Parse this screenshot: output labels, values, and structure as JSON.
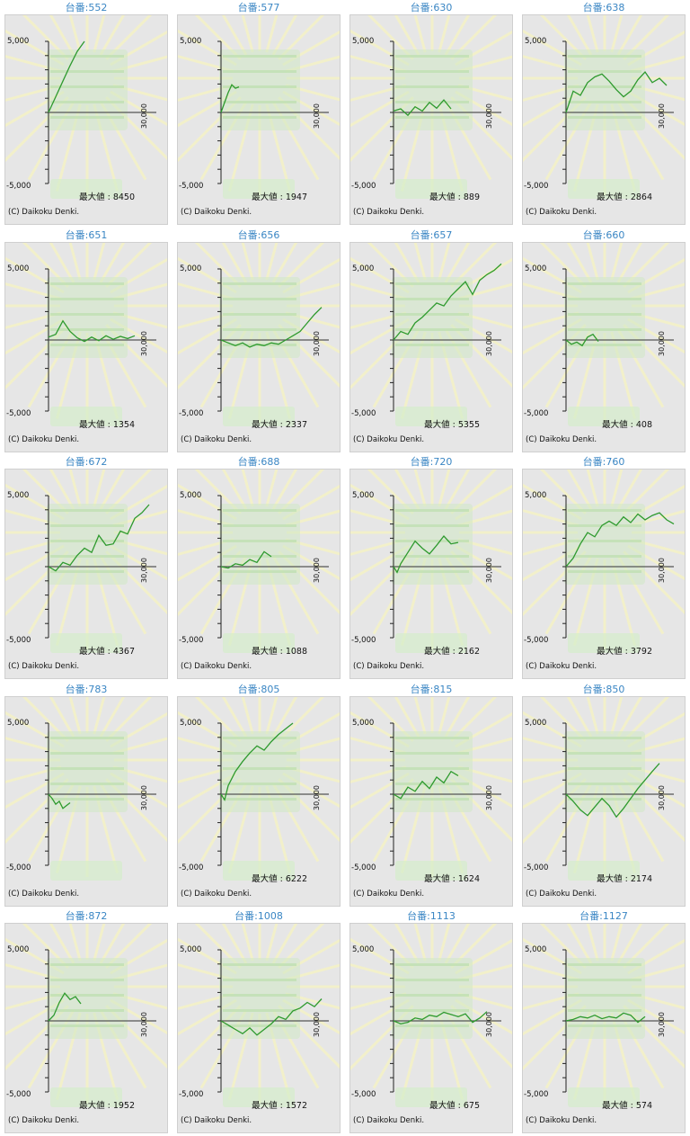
{
  "copyright": "(C) Daikoku Denki.",
  "max_label": "最大値 : ",
  "title_prefix": "台番:",
  "colors": {
    "line": "#2e9a2e",
    "title": "#3a86c4",
    "panel": "#e6e6e6"
  },
  "chart_data": [
    {
      "type": "line",
      "title": "台番:552",
      "machine": "552",
      "max_value": "8450",
      "y_ticks": [
        "5,000",
        "-5,000"
      ],
      "x_tick": "30,000",
      "ylim": [
        -5000,
        5000
      ],
      "xlim": [
        0,
        30000
      ],
      "x": [
        0,
        2000,
        4000,
        6000,
        8000,
        10000
      ],
      "y": [
        0,
        1100,
        2200,
        3300,
        4300,
        5000
      ]
    },
    {
      "type": "line",
      "title": "台番:577",
      "machine": "577",
      "max_value": "1947",
      "y_ticks": [
        "5,000",
        "-5,000"
      ],
      "x_tick": "30,000",
      "ylim": [
        -5000,
        5000
      ],
      "xlim": [
        0,
        30000
      ],
      "x": [
        0,
        1000,
        2000,
        3000,
        4000,
        5000
      ],
      "y": [
        0,
        700,
        1400,
        1950,
        1700,
        1800
      ]
    },
    {
      "type": "line",
      "title": "台番:630",
      "machine": "630",
      "max_value": "889",
      "y_ticks": [
        "5,000",
        "-5,000"
      ],
      "x_tick": "30,000",
      "ylim": [
        -5000,
        5000
      ],
      "xlim": [
        0,
        30000
      ],
      "x": [
        0,
        2000,
        4000,
        6000,
        8000,
        10000,
        12000,
        14000,
        16000
      ],
      "y": [
        100,
        250,
        -200,
        400,
        100,
        700,
        300,
        880,
        250
      ]
    },
    {
      "type": "line",
      "title": "台番:638",
      "machine": "638",
      "max_value": "2864",
      "y_ticks": [
        "5,000",
        "-5,000"
      ],
      "x_tick": "30,000",
      "ylim": [
        -5000,
        5000
      ],
      "xlim": [
        0,
        30000
      ],
      "x": [
        0,
        2000,
        4000,
        6000,
        8000,
        10000,
        12000,
        14000,
        16000,
        18000,
        20000,
        22000,
        24000,
        26000,
        28000
      ],
      "y": [
        0,
        1500,
        1200,
        2100,
        2500,
        2700,
        2200,
        1600,
        1100,
        1500,
        2300,
        2850,
        2100,
        2400,
        1900
      ]
    },
    {
      "type": "line",
      "title": "台番:651",
      "machine": "651",
      "max_value": "1354",
      "y_ticks": [
        "5,000",
        "-5,000"
      ],
      "x_tick": "30,000",
      "ylim": [
        -5000,
        5000
      ],
      "xlim": [
        0,
        30000
      ],
      "x": [
        0,
        2000,
        4000,
        6000,
        8000,
        10000,
        12000,
        14000,
        16000,
        18000,
        20000,
        22000,
        24000
      ],
      "y": [
        200,
        400,
        1350,
        600,
        150,
        -100,
        200,
        -50,
        300,
        50,
        250,
        100,
        300
      ]
    },
    {
      "type": "line",
      "title": "台番:656",
      "machine": "656",
      "max_value": "2337",
      "y_ticks": [
        "5,000",
        "-5,000"
      ],
      "x_tick": "30,000",
      "ylim": [
        -5000,
        5000
      ],
      "xlim": [
        0,
        30000
      ],
      "x": [
        0,
        2000,
        4000,
        6000,
        8000,
        10000,
        12000,
        14000,
        16000,
        18000,
        20000,
        22000,
        24000,
        26000,
        28000
      ],
      "y": [
        0,
        -200,
        -400,
        -200,
        -500,
        -300,
        -400,
        -200,
        -300,
        0,
        300,
        600,
        1200,
        1800,
        2300
      ]
    },
    {
      "type": "line",
      "title": "台番:657",
      "machine": "657",
      "max_value": "5355",
      "y_ticks": [
        "5,000",
        "-5,000"
      ],
      "x_tick": "30,000",
      "ylim": [
        -5000,
        5000
      ],
      "xlim": [
        0,
        30000
      ],
      "x": [
        0,
        2000,
        4000,
        6000,
        8000,
        10000,
        12000,
        14000,
        16000,
        18000,
        20000,
        22000,
        24000,
        26000,
        28000,
        30000
      ],
      "y": [
        0,
        600,
        400,
        1200,
        1600,
        2100,
        2600,
        2400,
        3100,
        3600,
        4100,
        3200,
        4200,
        4600,
        4900,
        5355
      ]
    },
    {
      "type": "line",
      "title": "台番:660",
      "machine": "660",
      "max_value": "408",
      "y_ticks": [
        "5,000",
        "-5,000"
      ],
      "x_tick": "30,000",
      "ylim": [
        -5000,
        5000
      ],
      "xlim": [
        0,
        30000
      ],
      "x": [
        0,
        1500,
        3000,
        4500,
        6000,
        7500,
        9000
      ],
      "y": [
        0,
        -300,
        -150,
        -400,
        200,
        400,
        -100
      ]
    },
    {
      "type": "line",
      "title": "台番:672",
      "machine": "672",
      "max_value": "4367",
      "y_ticks": [
        "5,000",
        "-5,000"
      ],
      "x_tick": "30,000",
      "ylim": [
        -5000,
        5000
      ],
      "xlim": [
        0,
        30000
      ],
      "x": [
        0,
        2000,
        4000,
        6000,
        8000,
        10000,
        12000,
        14000,
        16000,
        18000,
        20000,
        22000,
        24000,
        26000,
        28000
      ],
      "y": [
        0,
        -300,
        300,
        100,
        800,
        1300,
        1000,
        2200,
        1500,
        1600,
        2500,
        2300,
        3400,
        3800,
        4367
      ]
    },
    {
      "type": "line",
      "title": "台番:688",
      "machine": "688",
      "max_value": "1088",
      "y_ticks": [
        "5,000",
        "-5,000"
      ],
      "x_tick": "30,000",
      "ylim": [
        -5000,
        5000
      ],
      "xlim": [
        0,
        30000
      ],
      "x": [
        0,
        2000,
        4000,
        6000,
        8000,
        10000,
        12000,
        14000
      ],
      "y": [
        0,
        -100,
        200,
        100,
        500,
        300,
        1050,
        700
      ]
    },
    {
      "type": "line",
      "title": "台番:720",
      "machine": "720",
      "max_value": "2162",
      "y_ticks": [
        "5,000",
        "-5,000"
      ],
      "x_tick": "30,000",
      "ylim": [
        -5000,
        5000
      ],
      "xlim": [
        0,
        30000
      ],
      "x": [
        0,
        1000,
        2000,
        4000,
        6000,
        8000,
        10000,
        12000,
        14000,
        16000,
        18000
      ],
      "y": [
        0,
        -400,
        200,
        1000,
        1800,
        1300,
        900,
        1500,
        2150,
        1600,
        1700
      ]
    },
    {
      "type": "line",
      "title": "台番:760",
      "machine": "760",
      "max_value": "3792",
      "y_ticks": [
        "5,000",
        "-5,000"
      ],
      "x_tick": "30,000",
      "ylim": [
        -5000,
        5000
      ],
      "xlim": [
        0,
        30000
      ],
      "x": [
        0,
        2000,
        4000,
        6000,
        8000,
        10000,
        12000,
        14000,
        16000,
        18000,
        20000,
        22000,
        24000,
        26000,
        28000,
        30000
      ],
      "y": [
        0,
        600,
        1600,
        2400,
        2100,
        2900,
        3200,
        2900,
        3500,
        3100,
        3700,
        3300,
        3600,
        3790,
        3300,
        3000
      ]
    },
    {
      "type": "line",
      "title": "台番:783",
      "machine": "783",
      "max_value": "",
      "y_ticks": [
        "5,000",
        "-5,000"
      ],
      "x_tick": "30,000",
      "ylim": [
        -5000,
        5000
      ],
      "xlim": [
        0,
        30000
      ],
      "x": [
        0,
        1000,
        2000,
        3000,
        4000,
        5000,
        6000
      ],
      "y": [
        0,
        -300,
        -700,
        -500,
        -1000,
        -800,
        -600
      ]
    },
    {
      "type": "line",
      "title": "台番:805",
      "machine": "805",
      "max_value": "6222",
      "y_ticks": [
        "5,000",
        "-5,000"
      ],
      "x_tick": "30,000",
      "ylim": [
        -5000,
        5000
      ],
      "xlim": [
        0,
        30000
      ],
      "x": [
        0,
        1000,
        2000,
        4000,
        6000,
        8000,
        10000,
        12000,
        14000,
        16000,
        18000,
        20000
      ],
      "y": [
        0,
        -400,
        600,
        1600,
        2300,
        2900,
        3400,
        3100,
        3700,
        4200,
        4600,
        5000
      ]
    },
    {
      "type": "line",
      "title": "台番:815",
      "machine": "815",
      "max_value": "1624",
      "y_ticks": [
        "5,000",
        "-5,000"
      ],
      "x_tick": "30,000",
      "ylim": [
        -5000,
        5000
      ],
      "xlim": [
        0,
        30000
      ],
      "x": [
        0,
        2000,
        4000,
        6000,
        8000,
        10000,
        12000,
        14000,
        16000,
        18000
      ],
      "y": [
        0,
        -300,
        500,
        200,
        900,
        400,
        1200,
        800,
        1600,
        1300
      ]
    },
    {
      "type": "line",
      "title": "台番:850",
      "machine": "850",
      "max_value": "2174",
      "y_ticks": [
        "5,000",
        "-5,000"
      ],
      "x_tick": "30,000",
      "ylim": [
        -5000,
        5000
      ],
      "xlim": [
        0,
        30000
      ],
      "x": [
        0,
        2000,
        4000,
        6000,
        8000,
        10000,
        12000,
        14000,
        16000,
        18000,
        20000,
        22000,
        24000,
        26000
      ],
      "y": [
        0,
        -500,
        -1100,
        -1500,
        -900,
        -300,
        -800,
        -1600,
        -1000,
        -300,
        400,
        1000,
        1600,
        2170
      ]
    },
    {
      "type": "line",
      "title": "台番:872",
      "machine": "872",
      "max_value": "1952",
      "y_ticks": [
        "5,000",
        "-5,000"
      ],
      "x_tick": "30,000",
      "ylim": [
        -5000,
        5000
      ],
      "xlim": [
        0,
        30000
      ],
      "x": [
        0,
        1500,
        3000,
        4500,
        6000,
        7500,
        9000
      ],
      "y": [
        0,
        400,
        1300,
        1950,
        1500,
        1700,
        1200
      ]
    },
    {
      "type": "line",
      "title": "台番:1008",
      "machine": "1008",
      "max_value": "1572",
      "y_ticks": [
        "5,000",
        "-5,000"
      ],
      "x_tick": "30,000",
      "ylim": [
        -5000,
        5000
      ],
      "xlim": [
        0,
        30000
      ],
      "x": [
        0,
        2000,
        4000,
        6000,
        8000,
        10000,
        12000,
        14000,
        16000,
        18000,
        20000,
        22000,
        24000,
        26000,
        28000
      ],
      "y": [
        0,
        -300,
        -600,
        -900,
        -500,
        -1000,
        -600,
        -200,
        300,
        100,
        700,
        900,
        1300,
        1000,
        1550
      ]
    },
    {
      "type": "line",
      "title": "台番:1113",
      "machine": "1113",
      "max_value": "675",
      "y_ticks": [
        "5,000",
        "-5,000"
      ],
      "x_tick": "30,000",
      "ylim": [
        -5000,
        5000
      ],
      "xlim": [
        0,
        30000
      ],
      "x": [
        0,
        2000,
        4000,
        6000,
        8000,
        10000,
        12000,
        14000,
        16000,
        18000,
        20000,
        22000,
        24000,
        26000
      ],
      "y": [
        0,
        -200,
        -100,
        200,
        100,
        400,
        300,
        600,
        450,
        300,
        500,
        -100,
        200,
        650
      ]
    },
    {
      "type": "line",
      "title": "台番:1127",
      "machine": "1127",
      "max_value": "574",
      "y_ticks": [
        "5,000",
        "-5,000"
      ],
      "x_tick": "30,000",
      "ylim": [
        -5000,
        5000
      ],
      "xlim": [
        0,
        30000
      ],
      "x": [
        0,
        2000,
        4000,
        6000,
        8000,
        10000,
        12000,
        14000,
        16000,
        18000,
        20000,
        22000
      ],
      "y": [
        0,
        100,
        300,
        200,
        400,
        150,
        300,
        200,
        550,
        400,
        -100,
        300
      ]
    }
  ]
}
